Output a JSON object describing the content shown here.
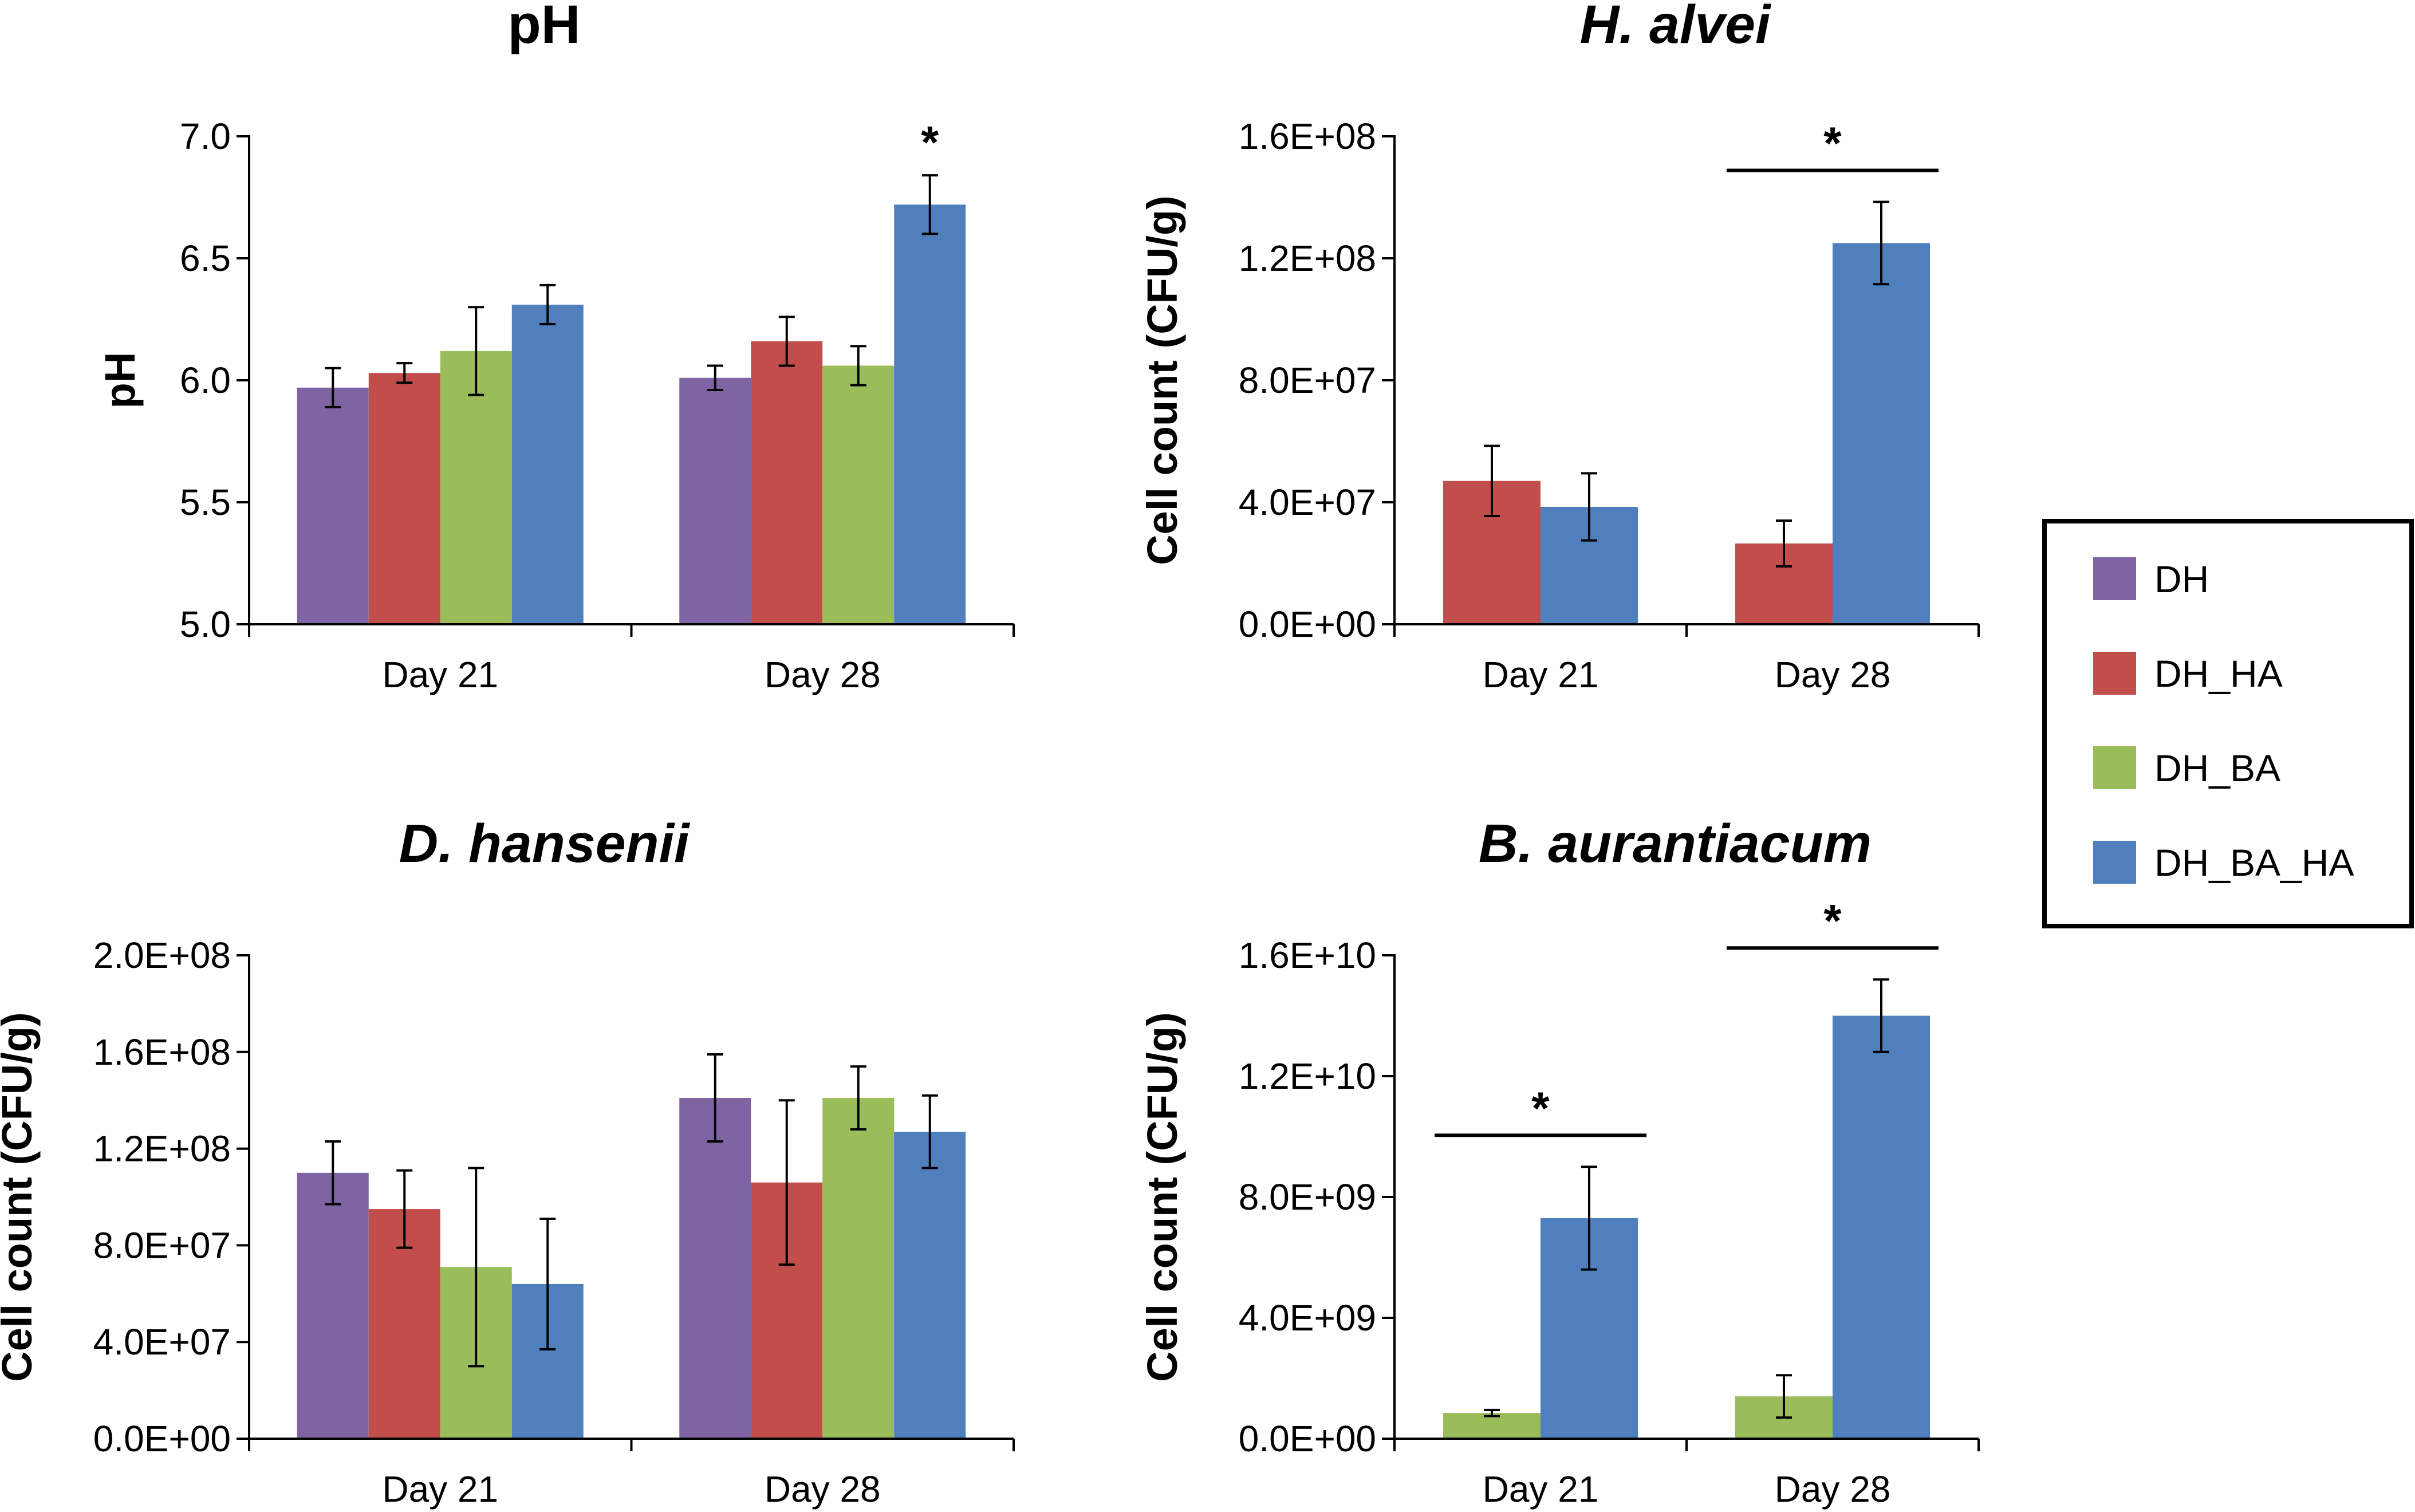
{
  "colors": {
    "DH": "#7f64a3",
    "DH_HA": "#c24e4c",
    "DH_BA": "#9abc59",
    "DH_BA_HA": "#4f80bd"
  },
  "legend": {
    "items": [
      "DH",
      "DH_HA",
      "DH_BA",
      "DH_BA_HA"
    ]
  },
  "chart_data": [
    {
      "id": "ph",
      "type": "bar",
      "title": "pH",
      "title_italic": false,
      "ylabel": "pH",
      "ylim": [
        5.0,
        7.0
      ],
      "yticks": [
        5.0,
        5.5,
        6.0,
        6.5,
        7.0
      ],
      "ytick_labels": [
        "5.0",
        "5.5",
        "6.0",
        "6.5",
        "7.0"
      ],
      "categories": [
        "Day 21",
        "Day 28"
      ],
      "series": [
        {
          "name": "DH",
          "values": [
            5.97,
            6.01
          ],
          "errors": [
            0.08,
            0.05
          ]
        },
        {
          "name": "DH_HA",
          "values": [
            6.03,
            6.16
          ],
          "errors": [
            0.04,
            0.1
          ]
        },
        {
          "name": "DH_BA",
          "values": [
            6.12,
            6.06
          ],
          "errors": [
            0.18,
            0.08
          ]
        },
        {
          "name": "DH_BA_HA",
          "values": [
            6.31,
            6.72
          ],
          "errors": [
            0.08,
            0.12
          ]
        }
      ],
      "annotations": [
        {
          "category": "Day 28",
          "text": "*",
          "bar": false,
          "series": [
            "DH_BA_HA"
          ]
        }
      ]
    },
    {
      "id": "halvei",
      "type": "bar",
      "title": "H. alvei",
      "title_italic": true,
      "ylabel": "Cell count (CFU/g)",
      "ylim": [
        0,
        160000000
      ],
      "yticks": [
        0,
        40000000,
        80000000,
        120000000,
        160000000
      ],
      "ytick_labels": [
        "0.0E+00",
        "4.0E+07",
        "8.0E+07",
        "1.2E+08",
        "1.6E+08"
      ],
      "categories": [
        "Day 21",
        "Day 28"
      ],
      "series": [
        {
          "name": "DH_HA",
          "values": [
            47000000,
            26500000
          ],
          "errors": [
            11500000,
            7500000
          ]
        },
        {
          "name": "DH_BA_HA",
          "values": [
            38500000,
            125000000
          ],
          "errors": [
            11000000,
            13500000
          ]
        }
      ],
      "annotations": [
        {
          "category": "Day 28",
          "text": "*",
          "bar": true,
          "series": [
            "DH_HA",
            "DH_BA_HA"
          ]
        }
      ]
    },
    {
      "id": "dhansenii",
      "type": "bar",
      "title": "D. hansenii",
      "title_italic": true,
      "ylabel": "Cell count (CFU/g)",
      "ylim": [
        0,
        200000000
      ],
      "yticks": [
        0,
        40000000,
        80000000,
        120000000,
        160000000,
        200000000
      ],
      "ytick_labels": [
        "0.0E+00",
        "4.0E+07",
        "8.0E+07",
        "1.2E+08",
        "1.6E+08",
        "2.0E+08"
      ],
      "categories": [
        "Day 21",
        "Day 28"
      ],
      "series": [
        {
          "name": "DH",
          "values": [
            110000000,
            141000000
          ],
          "errors": [
            13000000,
            18000000
          ]
        },
        {
          "name": "DH_HA",
          "values": [
            95000000,
            106000000
          ],
          "errors": [
            16000000,
            34000000
          ]
        },
        {
          "name": "DH_BA",
          "values": [
            71000000,
            141000000
          ],
          "errors": [
            41000000,
            13000000
          ]
        },
        {
          "name": "DH_BA_HA",
          "values": [
            64000000,
            127000000
          ],
          "errors": [
            27000000,
            15000000
          ]
        }
      ],
      "annotations": []
    },
    {
      "id": "baurantiacum",
      "type": "bar",
      "title": "B. aurantiacum",
      "title_italic": true,
      "ylabel": "Cell count (CFU/g)",
      "ylim": [
        0,
        16000000000
      ],
      "yticks": [
        0,
        4000000000,
        8000000000,
        12000000000,
        16000000000
      ],
      "ytick_labels": [
        "0.0E+00",
        "4.0E+09",
        "8.0E+09",
        "1.2E+10",
        "1.6E+10"
      ],
      "categories": [
        "Day 21",
        "Day 28"
      ],
      "series": [
        {
          "name": "DH_BA",
          "values": [
            850000000,
            1400000000
          ],
          "errors": [
            100000000,
            700000000
          ]
        },
        {
          "name": "DH_BA_HA",
          "values": [
            7300000000,
            14000000000
          ],
          "errors": [
            1700000000,
            1200000000
          ]
        }
      ],
      "annotations": [
        {
          "category": "Day 21",
          "text": "*",
          "bar": true,
          "series": [
            "DH_BA",
            "DH_BA_HA"
          ]
        },
        {
          "category": "Day 28",
          "text": "*",
          "bar": true,
          "series": [
            "DH_BA",
            "DH_BA_HA"
          ]
        }
      ]
    }
  ]
}
